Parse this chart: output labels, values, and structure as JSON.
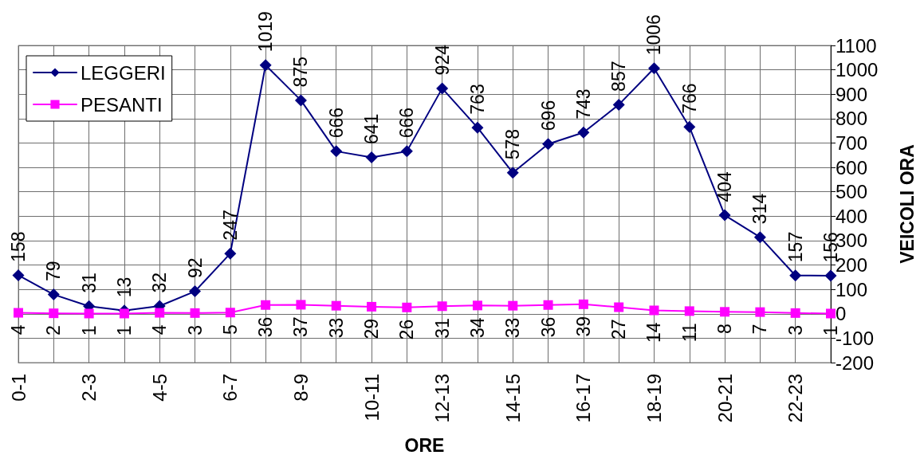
{
  "chart_data": {
    "type": "line",
    "xlabel": "ORE",
    "ylabel": "VEICOLI ORA",
    "categories": [
      "0-1",
      null,
      "2-3",
      null,
      "4-5",
      null,
      "6-7",
      null,
      "8-9",
      null,
      "10-11",
      null,
      "12-13",
      null,
      "14-15",
      null,
      "16-17",
      null,
      "18-19",
      null,
      "20-21",
      null,
      "22-23",
      null
    ],
    "series": [
      {
        "name": "LEGGERI",
        "color": "#000080",
        "marker": "diamond",
        "values": [
          158,
          79,
          31,
          13,
          32,
          92,
          247,
          1019,
          875,
          666,
          641,
          666,
          924,
          763,
          578,
          696,
          743,
          857,
          1006,
          766,
          404,
          314,
          157,
          156
        ]
      },
      {
        "name": "PESANTI",
        "color": "#ff00ff",
        "marker": "square",
        "values": [
          4,
          2,
          1,
          1,
          4,
          3,
          5,
          36,
          37,
          33,
          29,
          26,
          31,
          34,
          33,
          36,
          39,
          27,
          14,
          11,
          8,
          7,
          3,
          1
        ]
      }
    ],
    "ylim": [
      -200,
      1100
    ],
    "yticks": [
      -200,
      -100,
      0,
      100,
      200,
      300,
      400,
      500,
      600,
      700,
      800,
      900,
      1000,
      1100
    ],
    "grid": true,
    "legend": "top left",
    "data_labels": true,
    "line_style": "solid"
  }
}
